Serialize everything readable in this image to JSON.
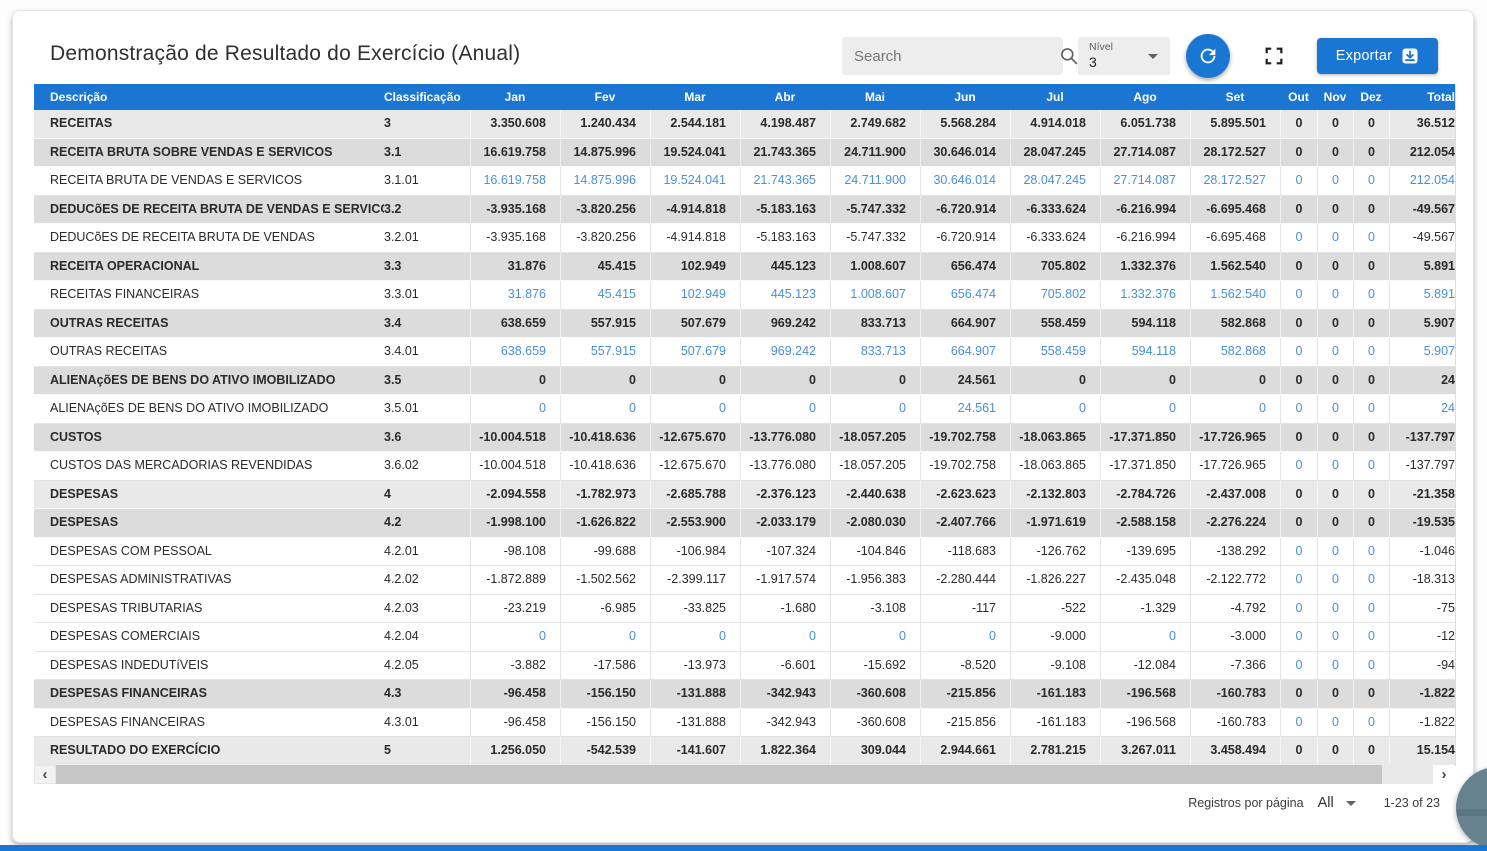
{
  "page": {
    "title": "Demonstração de Resultado do Exercício (Anual)"
  },
  "colors": {
    "primary": "#1976d2",
    "header_bg": "#1b76d3",
    "link_blue": "#4a90d5",
    "row_level0_bg": "#e9e9e9",
    "row_level1_bg": "#dcdcdc"
  },
  "toolbar": {
    "search_placeholder": "Search",
    "nivel_label": "Nível",
    "nivel_value": "3",
    "export_label": "Exportar",
    "icons": [
      "search-icon",
      "caret-down-icon",
      "refresh-icon",
      "fullscreen-icon",
      "download-icon"
    ]
  },
  "table": {
    "columns": [
      "Descrição",
      "Classificação",
      "Jan",
      "Fev",
      "Mar",
      "Abr",
      "Mai",
      "Jun",
      "Jul",
      "Ago",
      "Set",
      "Out",
      "Nov",
      "Dez",
      "Total"
    ],
    "rows": [
      {
        "desc": "RECEITAS",
        "class": "3",
        "values": [
          "3.350.608",
          "1.240.434",
          "2.544.181",
          "4.198.487",
          "2.749.682",
          "5.568.284",
          "4.914.018",
          "6.051.738",
          "5.895.501",
          "0",
          "0",
          "0",
          "36.512"
        ]
      },
      {
        "desc": "RECEITA BRUTA SOBRE VENDAS E SERVICOS",
        "class": "3.1",
        "values": [
          "16.619.758",
          "14.875.996",
          "19.524.041",
          "21.743.365",
          "24.711.900",
          "30.646.014",
          "28.047.245",
          "27.714.087",
          "28.172.527",
          "0",
          "0",
          "0",
          "212.054"
        ]
      },
      {
        "desc": "RECEITA BRUTA DE VENDAS E SERVICOS",
        "class": "3.1.01",
        "values": [
          "16.619.758",
          "14.875.996",
          "19.524.041",
          "21.743.365",
          "24.711.900",
          "30.646.014",
          "28.047.245",
          "27.714.087",
          "28.172.527",
          "0",
          "0",
          "0",
          "212.054"
        ]
      },
      {
        "desc": "DEDUCõES DE RECEITA BRUTA DE VENDAS E SERVICOS",
        "class": "3.2",
        "values": [
          "-3.935.168",
          "-3.820.256",
          "-4.914.818",
          "-5.183.163",
          "-5.747.332",
          "-6.720.914",
          "-6.333.624",
          "-6.216.994",
          "-6.695.468",
          "0",
          "0",
          "0",
          "-49.567"
        ]
      },
      {
        "desc": "DEDUCõES DE RECEITA BRUTA DE VENDAS",
        "class": "3.2.01",
        "values": [
          "-3.935.168",
          "-3.820.256",
          "-4.914.818",
          "-5.183.163",
          "-5.747.332",
          "-6.720.914",
          "-6.333.624",
          "-6.216.994",
          "-6.695.468",
          "0",
          "0",
          "0",
          "-49.567"
        ]
      },
      {
        "desc": "RECEITA OPERACIONAL",
        "class": "3.3",
        "values": [
          "31.876",
          "45.415",
          "102.949",
          "445.123",
          "1.008.607",
          "656.474",
          "705.802",
          "1.332.376",
          "1.562.540",
          "0",
          "0",
          "0",
          "5.891"
        ]
      },
      {
        "desc": "RECEITAS FINANCEIRAS",
        "class": "3.3.01",
        "values": [
          "31.876",
          "45.415",
          "102.949",
          "445.123",
          "1.008.607",
          "656.474",
          "705.802",
          "1.332.376",
          "1.562.540",
          "0",
          "0",
          "0",
          "5.891"
        ]
      },
      {
        "desc": "OUTRAS RECEITAS",
        "class": "3.4",
        "values": [
          "638.659",
          "557.915",
          "507.679",
          "969.242",
          "833.713",
          "664.907",
          "558.459",
          "594.118",
          "582.868",
          "0",
          "0",
          "0",
          "5.907"
        ]
      },
      {
        "desc": "OUTRAS RECEITAS",
        "class": "3.4.01",
        "values": [
          "638.659",
          "557.915",
          "507.679",
          "969.242",
          "833.713",
          "664.907",
          "558.459",
          "594.118",
          "582.868",
          "0",
          "0",
          "0",
          "5.907"
        ]
      },
      {
        "desc": "ALIENAçõES DE BENS DO ATIVO IMOBILIZADO",
        "class": "3.5",
        "values": [
          "0",
          "0",
          "0",
          "0",
          "0",
          "24.561",
          "0",
          "0",
          "0",
          "0",
          "0",
          "0",
          "24"
        ]
      },
      {
        "desc": "ALIENAçõES DE BENS DO ATIVO IMOBILIZADO",
        "class": "3.5.01",
        "values": [
          "0",
          "0",
          "0",
          "0",
          "0",
          "24.561",
          "0",
          "0",
          "0",
          "0",
          "0",
          "0",
          "24"
        ]
      },
      {
        "desc": "CUSTOS",
        "class": "3.6",
        "values": [
          "-10.004.518",
          "-10.418.636",
          "-12.675.670",
          "-13.776.080",
          "-18.057.205",
          "-19.702.758",
          "-18.063.865",
          "-17.371.850",
          "-17.726.965",
          "0",
          "0",
          "0",
          "-137.797"
        ]
      },
      {
        "desc": "CUSTOS DAS MERCADORIAS REVENDIDAS",
        "class": "3.6.02",
        "values": [
          "-10.004.518",
          "-10.418.636",
          "-12.675.670",
          "-13.776.080",
          "-18.057.205",
          "-19.702.758",
          "-18.063.865",
          "-17.371.850",
          "-17.726.965",
          "0",
          "0",
          "0",
          "-137.797"
        ]
      },
      {
        "desc": "DESPESAS",
        "class": "4",
        "values": [
          "-2.094.558",
          "-1.782.973",
          "-2.685.788",
          "-2.376.123",
          "-2.440.638",
          "-2.623.623",
          "-2.132.803",
          "-2.784.726",
          "-2.437.008",
          "0",
          "0",
          "0",
          "-21.358"
        ]
      },
      {
        "desc": "DESPESAS",
        "class": "4.2",
        "values": [
          "-1.998.100",
          "-1.626.822",
          "-2.553.900",
          "-2.033.179",
          "-2.080.030",
          "-2.407.766",
          "-1.971.619",
          "-2.588.158",
          "-2.276.224",
          "0",
          "0",
          "0",
          "-19.535"
        ]
      },
      {
        "desc": "DESPESAS COM PESSOAL",
        "class": "4.2.01",
        "values": [
          "-98.108",
          "-99.688",
          "-106.984",
          "-107.324",
          "-104.846",
          "-118.683",
          "-126.762",
          "-139.695",
          "-138.292",
          "0",
          "0",
          "0",
          "-1.046"
        ]
      },
      {
        "desc": "DESPESAS ADMINISTRATIVAS",
        "class": "4.2.02",
        "values": [
          "-1.872.889",
          "-1.502.562",
          "-2.399.117",
          "-1.917.574",
          "-1.956.383",
          "-2.280.444",
          "-1.826.227",
          "-2.435.048",
          "-2.122.772",
          "0",
          "0",
          "0",
          "-18.313"
        ]
      },
      {
        "desc": "DESPESAS TRIBUTARIAS",
        "class": "4.2.03",
        "values": [
          "-23.219",
          "-6.985",
          "-33.825",
          "-1.680",
          "-3.108",
          "-117",
          "-522",
          "-1.329",
          "-4.792",
          "0",
          "0",
          "0",
          "-75"
        ]
      },
      {
        "desc": "DESPESAS COMERCIAIS",
        "class": "4.2.04",
        "values": [
          "0",
          "0",
          "0",
          "0",
          "0",
          "0",
          "-9.000",
          "0",
          "-3.000",
          "0",
          "0",
          "0",
          "-12"
        ]
      },
      {
        "desc": "DESPESAS INDEDUTíVEIS",
        "class": "4.2.05",
        "values": [
          "-3.882",
          "-17.586",
          "-13.973",
          "-6.601",
          "-15.692",
          "-8.520",
          "-9.108",
          "-12.084",
          "-7.366",
          "0",
          "0",
          "0",
          "-94"
        ]
      },
      {
        "desc": "DESPESAS FINANCEIRAS",
        "class": "4.3",
        "values": [
          "-96.458",
          "-156.150",
          "-131.888",
          "-342.943",
          "-360.608",
          "-215.856",
          "-161.183",
          "-196.568",
          "-160.783",
          "0",
          "0",
          "0",
          "-1.822"
        ]
      },
      {
        "desc": "DESPESAS FINANCEIRAS",
        "class": "4.3.01",
        "values": [
          "-96.458",
          "-156.150",
          "-131.888",
          "-342.943",
          "-360.608",
          "-215.856",
          "-161.183",
          "-196.568",
          "-160.783",
          "0",
          "0",
          "0",
          "-1.822"
        ]
      },
      {
        "desc": "RESULTADO DO EXERCÍCIO",
        "class": "5",
        "values": [
          "1.256.050",
          "-542.539",
          "-141.607",
          "1.822.364",
          "309.044",
          "2.944.661",
          "2.781.215",
          "3.267.011",
          "3.458.494",
          "0",
          "0",
          "0",
          "15.154"
        ]
      }
    ]
  },
  "scrollbar": {
    "left_arrow": "‹",
    "right_arrow": "›"
  },
  "footer": {
    "rows_per_page_label": "Registros por página",
    "rows_per_page_value": "All",
    "range_label": "1-23 of 23"
  }
}
